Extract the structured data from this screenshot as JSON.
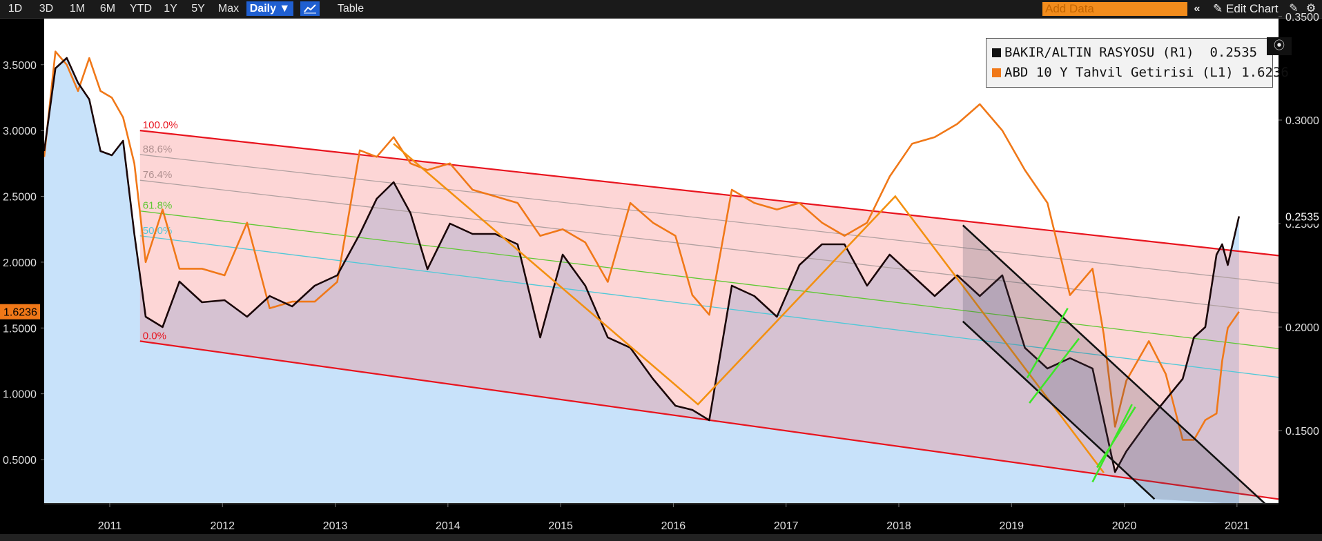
{
  "toolbar": {
    "ranges": [
      "1D",
      "3D",
      "1M",
      "6M",
      "YTD",
      "1Y",
      "5Y",
      "Max"
    ],
    "frequency": "Daily ▼",
    "chart_icon": "line-chart-icon",
    "table_label": "Table",
    "add_data_placeholder": "Add Data",
    "collapse_icon": "double-chevron-left-icon",
    "edit_chart_label": "Edit Chart",
    "edit_icon": "pencil-icon",
    "settings_icon": "gear-icon"
  },
  "mini_toolbar": [
    "crosshair-icon",
    "draw-line-icon",
    "notes-icon",
    "zoom-icon"
  ],
  "colors": {
    "background": "#000000",
    "plot_background": "#ffffff",
    "copper_gold": "#1a0608",
    "treasury": "#f07818",
    "channel_line": "#e8141e",
    "fib_618": "#5fc832",
    "fib_500": "#4fc8d8",
    "fib_other": "#b0a0a0",
    "trend_line": "#f39010",
    "black_channel": "#111111",
    "green_marks": "#3ce628",
    "area_fill": "#c8e2fa"
  },
  "chart_data": {
    "type": "line",
    "x_ticks": [
      "2011",
      "2012",
      "2013",
      "2014",
      "2015",
      "2016",
      "2017",
      "2018",
      "2019",
      "2020",
      "2021"
    ],
    "xlim": [
      2010.4,
      2021.35
    ],
    "left_axis": {
      "ylim": [
        0.17,
        3.85
      ],
      "ticks": [
        "3.5000",
        "3.0000",
        "2.5000",
        "2.0000",
        "1.5000",
        "1.0000",
        "0.5000"
      ],
      "tick_values": [
        3.5,
        3.0,
        2.5,
        2.0,
        1.5,
        1.0,
        0.5
      ],
      "last_value": "1.6236"
    },
    "right_axis": {
      "ylim": [
        0.115,
        0.349
      ],
      "ticks": [
        "0.3500",
        "0.3000",
        "0.2500",
        "0.2000",
        "0.1500"
      ],
      "tick_values": [
        0.35,
        0.3,
        0.25,
        0.2,
        0.15
      ],
      "last_value": "0.2535"
    },
    "series": [
      {
        "name": "BAKIR/ALTIN RASYOSU (R1)",
        "value": "0.2535",
        "axis": "right",
        "x": [
          2010.4,
          2010.5,
          2010.6,
          2010.7,
          2010.8,
          2010.9,
          2011.0,
          2011.1,
          2011.2,
          2011.3,
          2011.45,
          2011.6,
          2011.8,
          2012.0,
          2012.2,
          2012.4,
          2012.6,
          2012.8,
          2013.0,
          2013.2,
          2013.35,
          2013.5,
          2013.65,
          2013.8,
          2014.0,
          2014.2,
          2014.4,
          2014.6,
          2014.8,
          2015.0,
          2015.2,
          2015.4,
          2015.6,
          2015.8,
          2016.0,
          2016.15,
          2016.3,
          2016.5,
          2016.7,
          2016.9,
          2017.1,
          2017.3,
          2017.5,
          2017.7,
          2017.9,
          2018.1,
          2018.3,
          2018.5,
          2018.7,
          2018.9,
          2019.1,
          2019.3,
          2019.5,
          2019.7,
          2019.8,
          2019.9,
          2020.0,
          2020.2,
          2020.35,
          2020.5,
          2020.6,
          2020.7,
          2020.8,
          2020.85,
          2020.9,
          2021.0
        ],
        "y": [
          0.285,
          0.325,
          0.33,
          0.318,
          0.31,
          0.285,
          0.283,
          0.29,
          0.245,
          0.205,
          0.2,
          0.222,
          0.212,
          0.213,
          0.205,
          0.215,
          0.21,
          0.22,
          0.225,
          0.245,
          0.262,
          0.27,
          0.255,
          0.228,
          0.25,
          0.245,
          0.245,
          0.24,
          0.195,
          0.235,
          0.22,
          0.195,
          0.19,
          0.175,
          0.162,
          0.16,
          0.155,
          0.22,
          0.215,
          0.205,
          0.23,
          0.24,
          0.24,
          0.22,
          0.235,
          0.225,
          0.215,
          0.225,
          0.215,
          0.225,
          0.19,
          0.18,
          0.185,
          0.18,
          0.155,
          0.13,
          0.14,
          0.155,
          0.165,
          0.175,
          0.195,
          0.2,
          0.235,
          0.24,
          0.23,
          0.2535
        ]
      },
      {
        "name": "ABD 10 Y Tahvil Getirisi (L1)",
        "value": "1.6236",
        "axis": "left",
        "x": [
          2010.4,
          2010.5,
          2010.6,
          2010.7,
          2010.8,
          2010.9,
          2011.0,
          2011.1,
          2011.2,
          2011.3,
          2011.45,
          2011.6,
          2011.8,
          2012.0,
          2012.2,
          2012.4,
          2012.6,
          2012.8,
          2013.0,
          2013.2,
          2013.35,
          2013.5,
          2013.65,
          2013.8,
          2014.0,
          2014.2,
          2014.4,
          2014.6,
          2014.8,
          2015.0,
          2015.2,
          2015.4,
          2015.6,
          2015.8,
          2016.0,
          2016.15,
          2016.3,
          2016.5,
          2016.7,
          2016.9,
          2017.1,
          2017.3,
          2017.5,
          2017.7,
          2017.9,
          2018.1,
          2018.3,
          2018.5,
          2018.7,
          2018.9,
          2019.1,
          2019.3,
          2019.5,
          2019.7,
          2019.8,
          2019.9,
          2020.0,
          2020.2,
          2020.35,
          2020.5,
          2020.6,
          2020.7,
          2020.8,
          2020.85,
          2020.9,
          2021.0
        ],
        "y": [
          2.8,
          3.6,
          3.5,
          3.3,
          3.55,
          3.3,
          3.25,
          3.1,
          2.75,
          2.0,
          2.4,
          1.95,
          1.95,
          1.9,
          2.3,
          1.65,
          1.7,
          1.7,
          1.85,
          2.85,
          2.8,
          2.95,
          2.75,
          2.7,
          2.75,
          2.55,
          2.5,
          2.45,
          2.2,
          2.25,
          2.15,
          1.85,
          2.45,
          2.3,
          2.2,
          1.75,
          1.6,
          2.55,
          2.45,
          2.4,
          2.45,
          2.3,
          2.2,
          2.3,
          2.65,
          2.9,
          2.95,
          3.05,
          3.2,
          3.0,
          2.7,
          2.45,
          1.75,
          1.95,
          1.45,
          0.75,
          1.1,
          1.4,
          1.15,
          0.65,
          0.65,
          0.8,
          0.85,
          1.25,
          1.5,
          1.6236
        ]
      }
    ],
    "fibonacci_levels": [
      "100.0%",
      "88.6%",
      "76.4%",
      "61.8%",
      "50.0%",
      "0.0%"
    ],
    "annotations": {
      "upper_channel": [
        [
          2011.25,
          3.0
        ],
        [
          2021.35,
          2.05
        ]
      ],
      "lower_channel": [
        [
          2011.25,
          1.4
        ],
        [
          2021.35,
          0.2
        ]
      ],
      "zigzag": [
        [
          2013.5,
          2.9
        ],
        [
          2016.2,
          0.92
        ],
        [
          2017.95,
          2.5
        ],
        [
          2019.8,
          0.4
        ]
      ],
      "black_channel_top": [
        [
          2018.55,
          2.28
        ],
        [
          2021.25,
          0.15
        ]
      ],
      "black_channel_bottom": [
        [
          2018.55,
          1.55
        ],
        [
          2020.25,
          0.2
        ]
      ]
    },
    "legend_position": "top-right",
    "grid": false
  }
}
